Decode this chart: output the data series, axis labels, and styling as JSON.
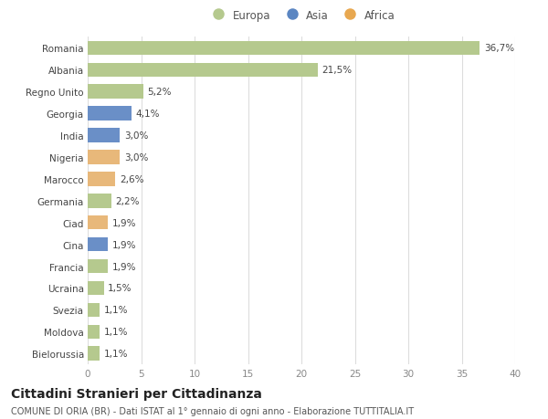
{
  "categories": [
    "Romania",
    "Albania",
    "Regno Unito",
    "Georgia",
    "India",
    "Nigeria",
    "Marocco",
    "Germania",
    "Ciad",
    "Cina",
    "Francia",
    "Ucraina",
    "Svezia",
    "Moldova",
    "Bielorussia"
  ],
  "values": [
    36.7,
    21.5,
    5.2,
    4.1,
    3.0,
    3.0,
    2.6,
    2.2,
    1.9,
    1.9,
    1.9,
    1.5,
    1.1,
    1.1,
    1.1
  ],
  "labels": [
    "36,7%",
    "21,5%",
    "5,2%",
    "4,1%",
    "3,0%",
    "3,0%",
    "2,6%",
    "2,2%",
    "1,9%",
    "1,9%",
    "1,9%",
    "1,5%",
    "1,1%",
    "1,1%",
    "1,1%"
  ],
  "continents": [
    "Europa",
    "Europa",
    "Europa",
    "Asia",
    "Asia",
    "Africa",
    "Africa",
    "Europa",
    "Africa",
    "Asia",
    "Europa",
    "Europa",
    "Europa",
    "Europa",
    "Europa"
  ],
  "colors": {
    "Europa": "#b5c98e",
    "Asia": "#6a8fc7",
    "Africa": "#e8b87a"
  },
  "legend_colors": {
    "Europa": "#b5c98e",
    "Asia": "#5b86c2",
    "Africa": "#e8a850"
  },
  "xlim": [
    0,
    40
  ],
  "xticks": [
    0,
    5,
    10,
    15,
    20,
    25,
    30,
    35,
    40
  ],
  "title": "Cittadini Stranieri per Cittadinanza",
  "subtitle": "COMUNE DI ORIA (BR) - Dati ISTAT al 1° gennaio di ogni anno - Elaborazione TUTTITALIA.IT",
  "background_color": "#ffffff",
  "plot_bg_color": "#ffffff",
  "grid_color": "#dddddd",
  "bar_height": 0.65,
  "label_fontsize": 7.5,
  "tick_fontsize": 7.5,
  "title_fontsize": 10,
  "subtitle_fontsize": 7
}
